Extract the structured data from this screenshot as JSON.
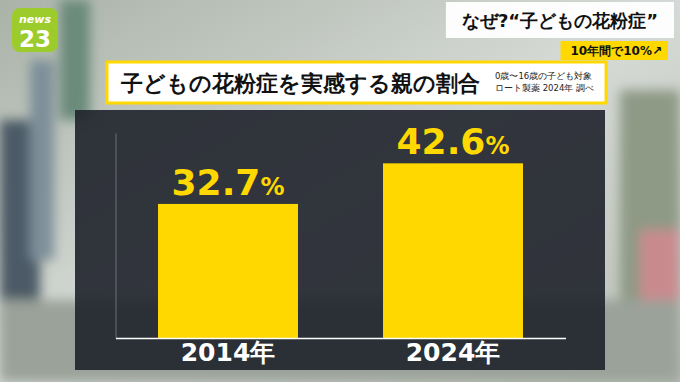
{
  "chart_data": {
    "type": "bar",
    "title": "子どもの花粉症を実感する親の割合",
    "annotations": [
      "0歳〜16歳の子ども対象",
      "ロート製薬 2024年 調べ"
    ],
    "categories": [
      "2014年",
      "2024年"
    ],
    "values": [
      32.7,
      42.6
    ],
    "value_labels": [
      "32.7%",
      "42.6%"
    ],
    "data_labels": true,
    "color": "#ffd800",
    "ylim": [
      0,
      50
    ],
    "tick_labels": "x",
    "grid": false
  },
  "header": {
    "logo": [
      "news",
      "23"
    ],
    "headline": "なぜ?“子どもの花粉症”",
    "badge": "10年間で10%↗"
  }
}
